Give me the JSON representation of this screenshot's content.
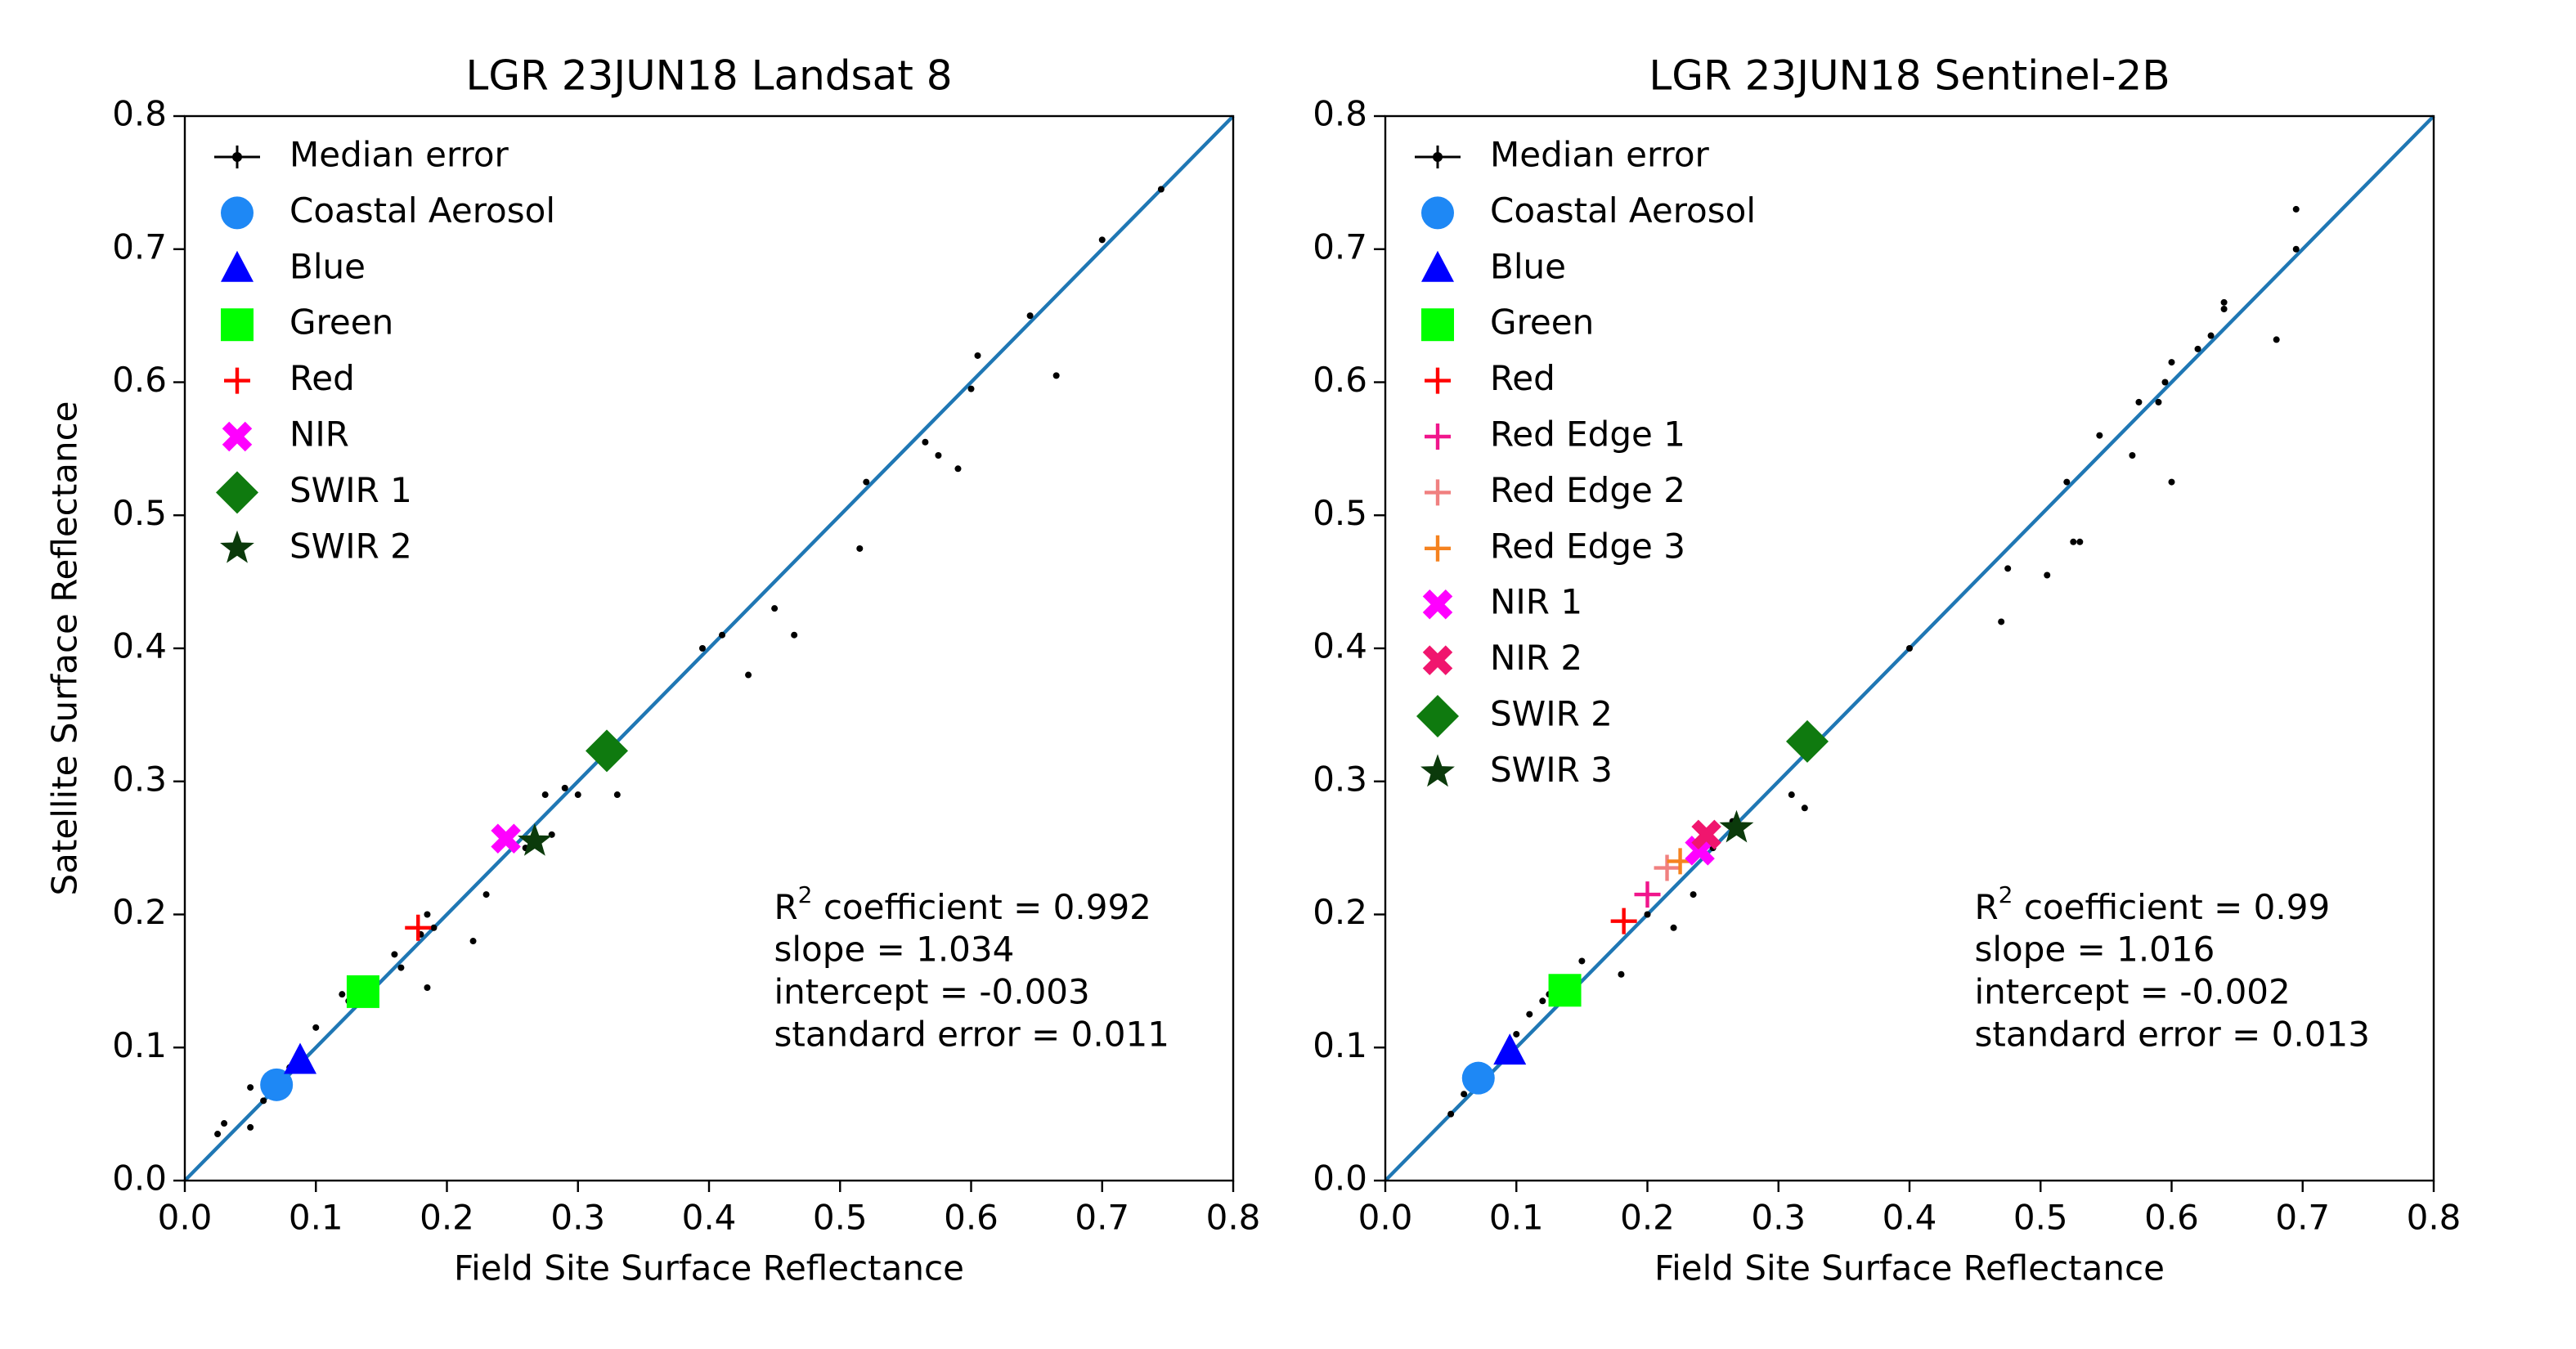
{
  "chart_data": [
    {
      "type": "scatter",
      "title": "LGR 23JUN18 Landsat 8",
      "xlabel": "Field Site Surface Reflectance",
      "ylabel": "Satellite Surface Reflectance",
      "xlim": [
        0,
        0.8
      ],
      "ylim": [
        0,
        0.8
      ],
      "xticks": [
        {
          "value": 0,
          "label": "0.0"
        },
        0.1,
        0.2,
        0.3,
        0.4,
        0.5,
        0.6,
        0.7,
        0.8
      ],
      "yticks": [
        {
          "value": 0,
          "label": "0.0"
        },
        0.1,
        0.2,
        0.3,
        0.4,
        0.5,
        0.6,
        0.7,
        0.8
      ],
      "reference_color": "#1f77b4",
      "series": [
        {
          "name": "Median error",
          "color": "#000000",
          "marker": "dot",
          "x": [
            0.025,
            0.03,
            0.05,
            0.05,
            0.06,
            0.065,
            0.08,
            0.1,
            0.12,
            0.125,
            0.13,
            0.16,
            0.165,
            0.18,
            0.185,
            0.185,
            0.19,
            0.22,
            0.23,
            0.26,
            0.27,
            0.275,
            0.28,
            0.29,
            0.3,
            0.32,
            0.33,
            0.395,
            0.41,
            0.43,
            0.45,
            0.465,
            0.515,
            0.52,
            0.565,
            0.575,
            0.59,
            0.6,
            0.605,
            0.645,
            0.665,
            0.7,
            0.745
          ],
          "y": [
            0.035,
            0.043,
            0.04,
            0.07,
            0.06,
            0.08,
            0.085,
            0.115,
            0.14,
            0.135,
            0.132,
            0.17,
            0.16,
            0.185,
            0.2,
            0.145,
            0.19,
            0.18,
            0.215,
            0.25,
            0.255,
            0.29,
            0.26,
            0.295,
            0.29,
            0.32,
            0.29,
            0.4,
            0.41,
            0.38,
            0.43,
            0.41,
            0.475,
            0.525,
            0.555,
            0.545,
            0.535,
            0.595,
            0.62,
            0.65,
            0.605,
            0.707,
            0.745
          ]
        },
        {
          "name": "Coastal Aerosol",
          "color": "#1e88f5",
          "marker": "circle",
          "x": [
            0.07
          ],
          "y": [
            0.072
          ]
        },
        {
          "name": "Blue",
          "color": "#0000ff",
          "marker": "triangle",
          "x": [
            0.088
          ],
          "y": [
            0.09
          ]
        },
        {
          "name": "Green",
          "color": "#00ff00",
          "marker": "square",
          "x": [
            0.136
          ],
          "y": [
            0.142
          ]
        },
        {
          "name": "Red",
          "color": "#ff0000",
          "marker": "plus",
          "x": [
            0.178
          ],
          "y": [
            0.19
          ]
        },
        {
          "name": "NIR",
          "color": "#ff00ff",
          "marker": "x",
          "x": [
            0.245
          ],
          "y": [
            0.257
          ]
        },
        {
          "name": "SWIR 1",
          "color": "#0f7a0f",
          "marker": "diamond",
          "x": [
            0.322
          ],
          "y": [
            0.323
          ]
        },
        {
          "name": "SWIR 2",
          "color": "#0b3a0b",
          "marker": "star",
          "x": [
            0.267
          ],
          "y": [
            0.255
          ]
        }
      ],
      "annotation": {
        "r2": {
          "base": "R",
          "sup": "2",
          "text": " coefficient = 0.992"
        },
        "lines": [
          "slope = 1.034",
          "intercept = -0.003",
          "standard error = 0.011"
        ]
      }
    },
    {
      "type": "scatter",
      "title": "LGR 23JUN18 Sentinel-2B",
      "xlabel": "Field Site Surface Reflectance",
      "xlim": [
        0,
        0.8
      ],
      "ylim": [
        0,
        0.8
      ],
      "xticks": [
        {
          "value": 0,
          "label": "0.0"
        },
        0.1,
        0.2,
        0.3,
        0.4,
        0.5,
        0.6,
        0.7,
        0.8
      ],
      "yticks": [
        {
          "value": 0,
          "label": "0.0"
        },
        0.1,
        0.2,
        0.3,
        0.4,
        0.5,
        0.6,
        0.7,
        0.8
      ],
      "reference_color": "#1f77b4",
      "series": [
        {
          "name": "Median error",
          "color": "#000000",
          "marker": "dot",
          "x": [
            0.05,
            0.06,
            0.075,
            0.09,
            0.1,
            0.11,
            0.12,
            0.125,
            0.15,
            0.18,
            0.2,
            0.22,
            0.235,
            0.25,
            0.265,
            0.31,
            0.32,
            0.4,
            0.47,
            0.475,
            0.505,
            0.52,
            0.525,
            0.53,
            0.545,
            0.57,
            0.575,
            0.59,
            0.595,
            0.6,
            0.6,
            0.62,
            0.63,
            0.64,
            0.64,
            0.68,
            0.695,
            0.695
          ],
          "y": [
            0.05,
            0.065,
            0.08,
            0.09,
            0.11,
            0.125,
            0.135,
            0.14,
            0.165,
            0.155,
            0.2,
            0.19,
            0.215,
            0.25,
            0.27,
            0.29,
            0.28,
            0.4,
            0.42,
            0.46,
            0.455,
            0.525,
            0.48,
            0.48,
            0.56,
            0.545,
            0.585,
            0.585,
            0.6,
            0.615,
            0.525,
            0.625,
            0.635,
            0.655,
            0.66,
            0.632,
            0.73,
            0.7
          ]
        },
        {
          "name": "Coastal Aerosol",
          "color": "#1e88f5",
          "marker": "circle",
          "x": [
            0.071
          ],
          "y": [
            0.077
          ]
        },
        {
          "name": "Blue",
          "color": "#0000ff",
          "marker": "triangle",
          "x": [
            0.095
          ],
          "y": [
            0.097
          ]
        },
        {
          "name": "Green",
          "color": "#00ff00",
          "marker": "square",
          "x": [
            0.137
          ],
          "y": [
            0.143
          ]
        },
        {
          "name": "Red",
          "color": "#ff0000",
          "marker": "plus",
          "x": [
            0.182
          ],
          "y": [
            0.195
          ]
        },
        {
          "name": "Red Edge 1",
          "color": "#f0168c",
          "marker": "plus",
          "x": [
            0.2
          ],
          "y": [
            0.215
          ]
        },
        {
          "name": "Red Edge 2",
          "color": "#f08080",
          "marker": "plus",
          "x": [
            0.215
          ],
          "y": [
            0.235
          ]
        },
        {
          "name": "Red Edge 3",
          "color": "#f5821f",
          "marker": "plus",
          "x": [
            0.225
          ],
          "y": [
            0.24
          ]
        },
        {
          "name": "NIR 1",
          "color": "#ff00ff",
          "marker": "x",
          "x": [
            0.24
          ],
          "y": [
            0.248
          ]
        },
        {
          "name": "NIR 2",
          "color": "#f0166e",
          "marker": "x",
          "x": [
            0.245
          ],
          "y": [
            0.26
          ]
        },
        {
          "name": "SWIR 2",
          "color": "#0f7a0f",
          "marker": "diamond",
          "x": [
            0.322
          ],
          "y": [
            0.33
          ]
        },
        {
          "name": "SWIR 3",
          "color": "#0b3a0b",
          "marker": "star",
          "x": [
            0.268
          ],
          "y": [
            0.265
          ]
        }
      ],
      "annotation": {
        "r2": {
          "base": "R",
          "sup": "2",
          "text": " coefficient = 0.99"
        },
        "lines": [
          "slope = 1.016",
          "intercept = -0.002",
          "standard error = 0.013"
        ]
      }
    }
  ]
}
